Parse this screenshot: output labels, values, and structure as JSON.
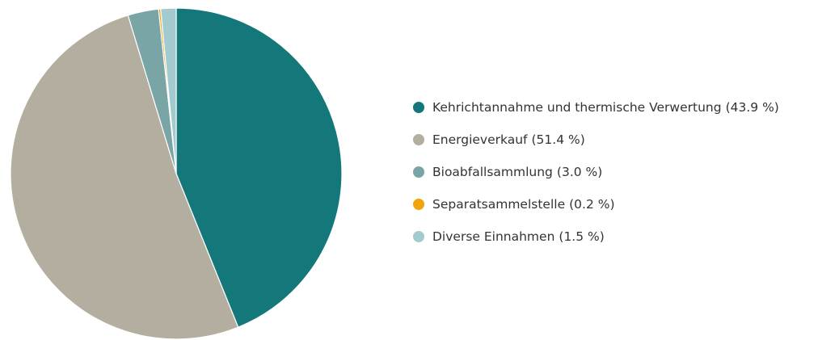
{
  "chart_data": {
    "type": "pie",
    "categories": [
      "Kehrichtannahme und thermische Verwertung",
      "Energieverkauf",
      "Bioabfallsammlung",
      "Separatsammelstelle",
      "Diverse Einnahmen"
    ],
    "values": [
      43.9,
      51.4,
      3.0,
      0.2,
      1.5
    ],
    "value_labels": [
      "(43.9 %)",
      "(51.4 %)",
      "(3.0 %)",
      "(0.2 %)",
      "(1.5 %)"
    ],
    "colors": [
      "#14787a",
      "#b3ae9f",
      "#7aa5a6",
      "#f0a30a",
      "#a3cbcf"
    ],
    "legend": "right"
  }
}
